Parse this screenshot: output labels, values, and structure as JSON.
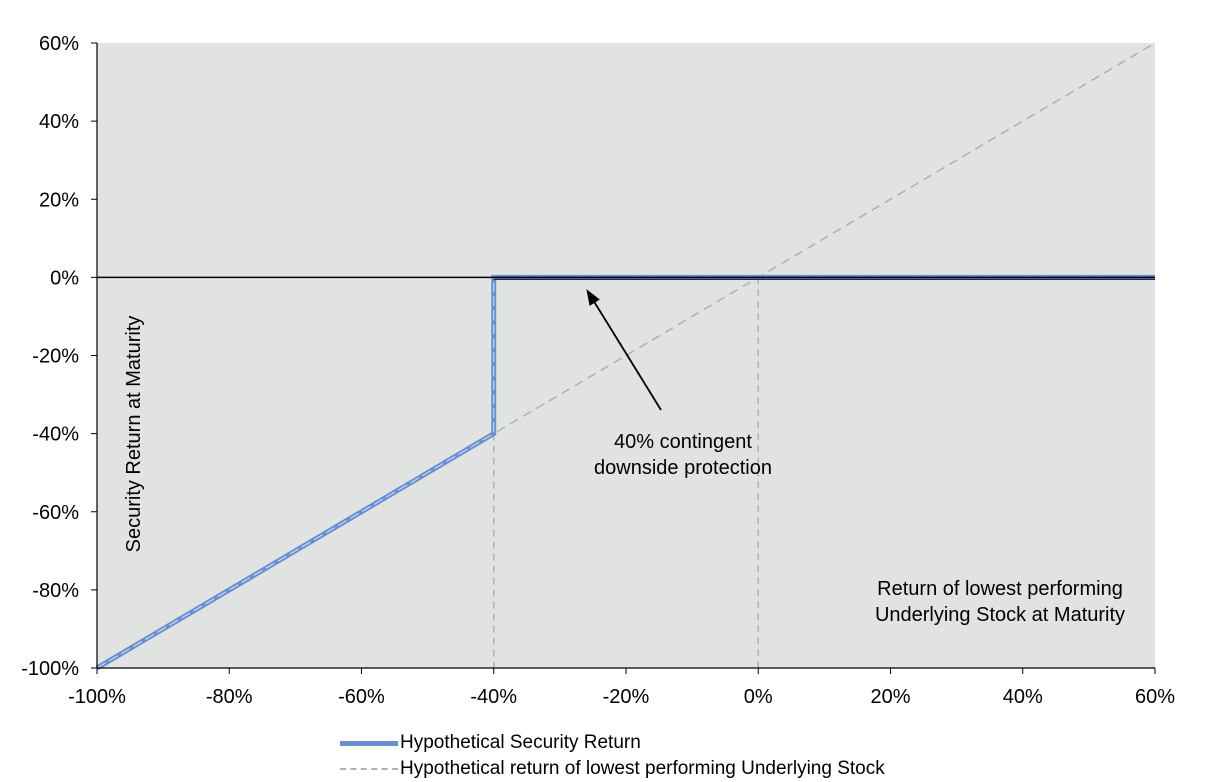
{
  "chart_data": {
    "type": "line",
    "title": "",
    "xlabel": "Return of lowest performing Underlying Stock at Maturity",
    "ylabel": "Security Return at Maturity",
    "xlim": [
      -100,
      60
    ],
    "ylim": [
      -100,
      60
    ],
    "x_ticks": [
      "-100%",
      "-80%",
      "-60%",
      "-40%",
      "-20%",
      "0%",
      "20%",
      "40%",
      "60%"
    ],
    "y_ticks": [
      "60%",
      "40%",
      "20%",
      "0%",
      "-20%",
      "-40%",
      "-60%",
      "-80%",
      "-100%"
    ],
    "x_tick_values": [
      -100,
      -80,
      -60,
      -40,
      -20,
      0,
      20,
      40,
      60
    ],
    "y_tick_values": [
      60,
      40,
      20,
      0,
      -20,
      -40,
      -60,
      -80,
      -100
    ],
    "series": [
      {
        "name": "Hypothetical Security Return",
        "color": "#6a8fd0",
        "style": "solid",
        "x": [
          -100,
          -40,
          -40,
          60
        ],
        "y": [
          -100,
          -40,
          0,
          0
        ]
      },
      {
        "name": "Hypothetical return of lowest performing Underlying Stock",
        "color": "#b0b0b0",
        "style": "dashed",
        "x": [
          -100,
          60
        ],
        "y": [
          -100,
          60
        ]
      }
    ],
    "reference_lines": [
      {
        "axis": "x",
        "value": -40,
        "style": "dashed"
      },
      {
        "axis": "x",
        "value": 0,
        "style": "dashed"
      }
    ],
    "annotations": {
      "protection_line1": "40% contingent",
      "protection_line2": "downside protection",
      "arrow_target": {
        "x": -26,
        "y": -3
      },
      "x_label_line1": "Return of lowest performing",
      "x_label_line2": "Underlying  Stock at Maturity"
    },
    "legend": {
      "placement": "bottom",
      "items": [
        "Hypothetical Security Return",
        "Hypothetical return of lowest performing Underlying Stock"
      ]
    },
    "colors": {
      "plot_background": "#e1e2e2",
      "axis": "#000000",
      "zero_line": "#000000"
    }
  }
}
